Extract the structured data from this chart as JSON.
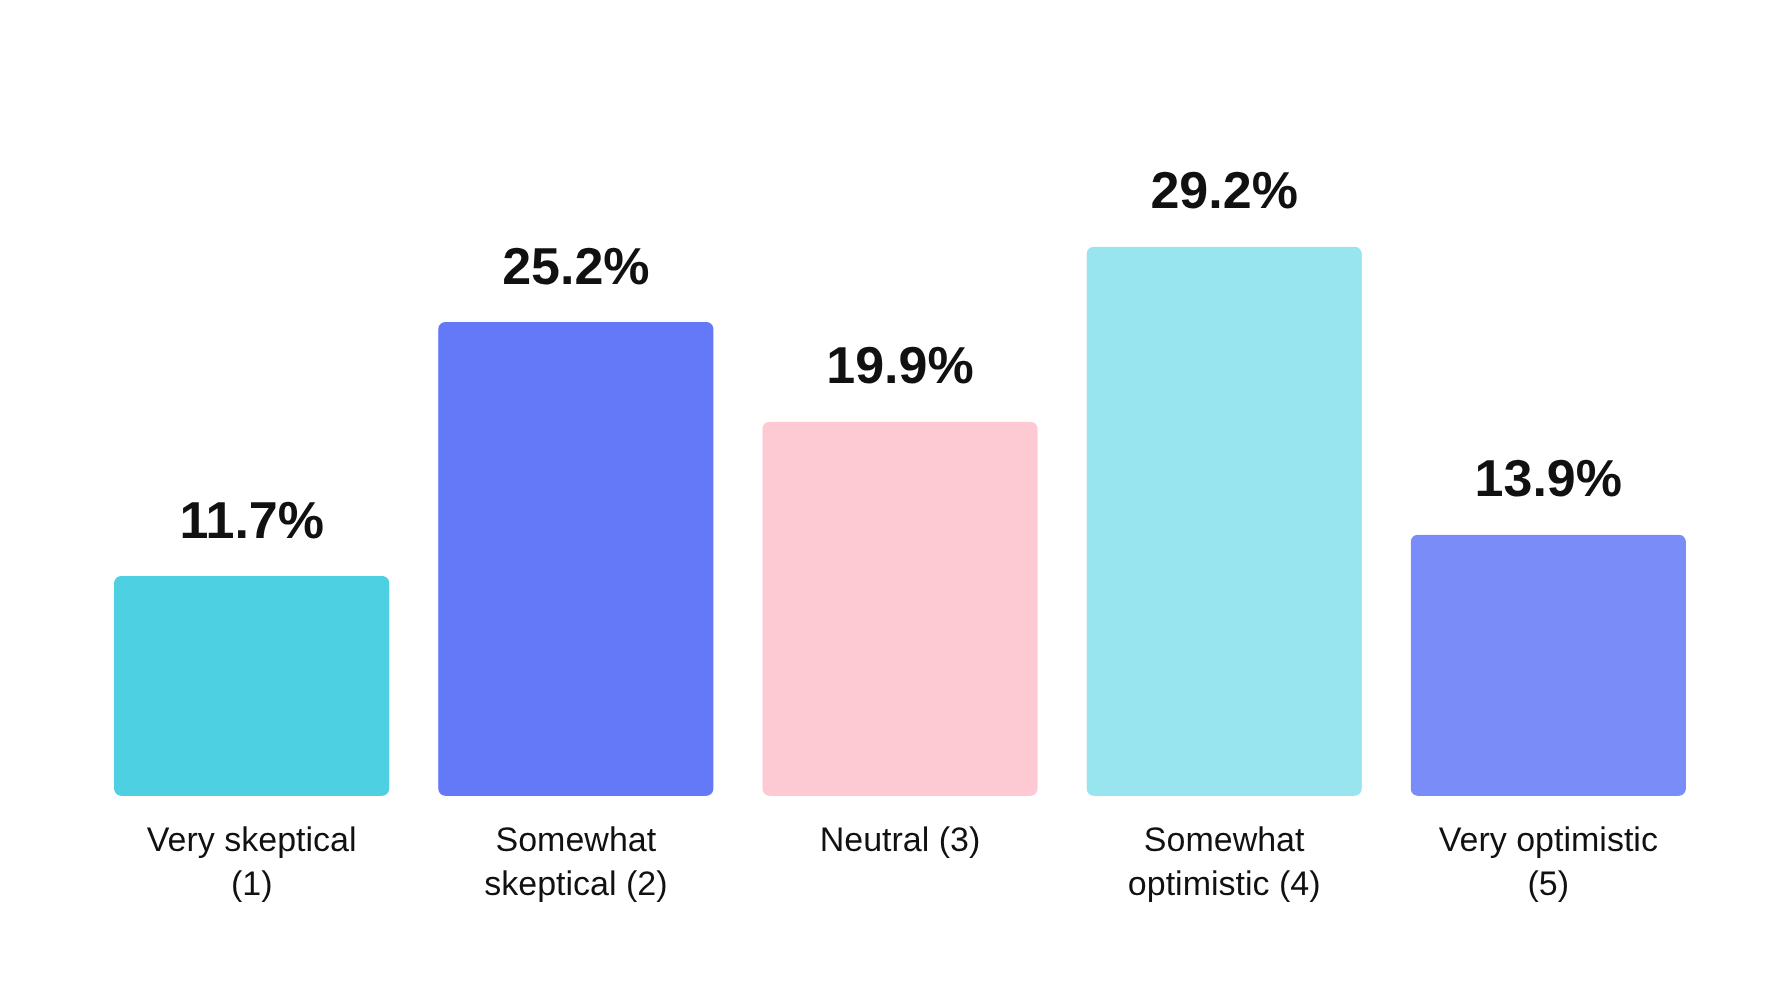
{
  "chart_data": {
    "type": "bar",
    "categories": [
      "Very skeptical (1)",
      "Somewhat skeptical (2)",
      "Neutral (3)",
      "Somewhat optimistic (4)",
      "Very optimistic (5)"
    ],
    "values": [
      11.7,
      25.2,
      19.9,
      29.2,
      13.9
    ],
    "colors": [
      "#4dd0e1",
      "#6479f7",
      "#fdc9d3",
      "#98e4ef",
      "#7a8cf8"
    ],
    "value_labels": [
      "11.7%",
      "25.2%",
      "19.9%",
      "29.2%",
      "13.9%"
    ],
    "grid": false
  }
}
